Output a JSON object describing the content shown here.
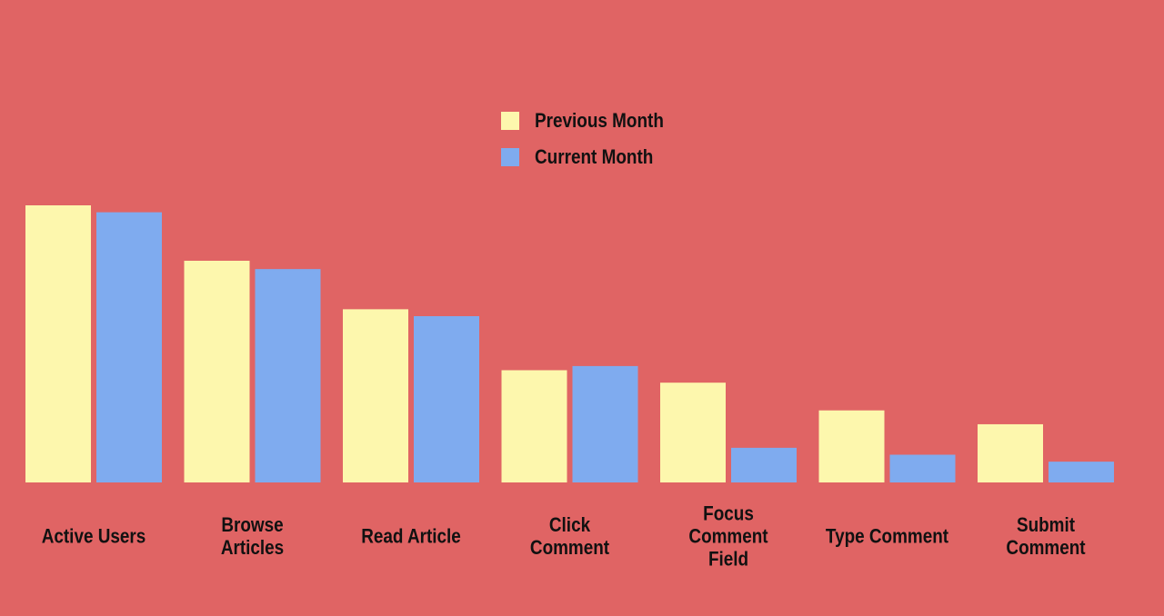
{
  "chart_data": {
    "type": "bar",
    "title": "",
    "xlabel": "",
    "ylabel": "",
    "ylim": [
      0,
      100
    ],
    "categories": [
      "Active Users",
      "Browse\nArticles",
      "Read Article",
      "Click\nComment",
      "Focus\nComment\nField",
      "Type Comment",
      "Submit\nComment"
    ],
    "series": [
      {
        "name": "Previous Month",
        "color": "#fdf7ad",
        "values": [
          100,
          80,
          62.5,
          40.5,
          36,
          26,
          21
        ]
      },
      {
        "name": "Current Month",
        "color": "#7fabef",
        "values": [
          97.5,
          77,
          60,
          42,
          12.5,
          10,
          7.5
        ]
      }
    ],
    "legend_position": "top-center",
    "grid": false
  }
}
